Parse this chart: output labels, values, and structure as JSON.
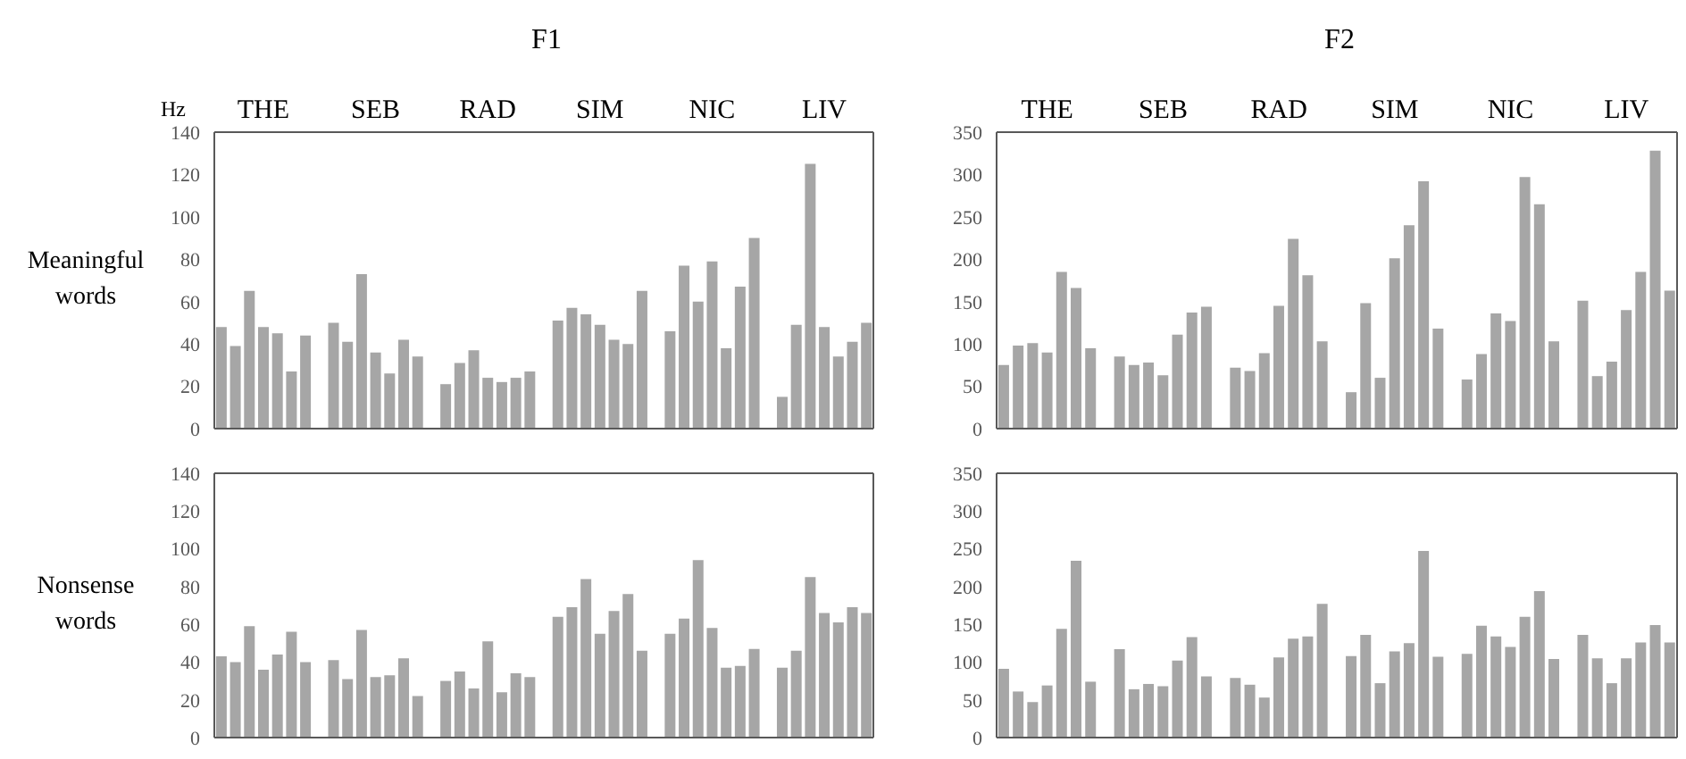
{
  "chart_data": [
    {
      "type": "bar",
      "title": "F1",
      "ylabel": "Meaningful words",
      "annotations": [
        "Hz"
      ],
      "color": "#a6a6a6",
      "categories": [
        null,
        null,
        null,
        "THE",
        null,
        null,
        null,
        null,
        null,
        null,
        null,
        "SEB",
        null,
        null,
        null,
        null,
        null,
        null,
        null,
        "RAD",
        null,
        null,
        null,
        null,
        null,
        null,
        null,
        "SIM",
        null,
        null,
        null,
        null,
        null,
        null,
        null,
        "NIC",
        null,
        null,
        null,
        null,
        null,
        null,
        null,
        "LIV",
        null,
        null,
        null
      ],
      "values": [
        48,
        39,
        65,
        48,
        45,
        27,
        44,
        null,
        50,
        41,
        73,
        36,
        26,
        42,
        34,
        null,
        21,
        31,
        37,
        24,
        22,
        24,
        27,
        null,
        51,
        57,
        54,
        49,
        42,
        40,
        65,
        null,
        46,
        77,
        60,
        79,
        38,
        67,
        90,
        null,
        15,
        49,
        125,
        48,
        34,
        41,
        50
      ],
      "ylim": [
        0,
        140
      ],
      "yticks": [
        0,
        20,
        40,
        60,
        80,
        100,
        120,
        140
      ]
    },
    {
      "type": "bar",
      "title": "F2",
      "color": "#a6a6a6",
      "categories": [
        null,
        null,
        null,
        "THE",
        null,
        null,
        null,
        null,
        null,
        null,
        null,
        "SEB",
        null,
        null,
        null,
        null,
        null,
        null,
        null,
        "RAD",
        null,
        null,
        null,
        null,
        null,
        null,
        null,
        "SIM",
        null,
        null,
        null,
        null,
        null,
        null,
        null,
        "NIC",
        null,
        null,
        null,
        null,
        null,
        null,
        null,
        "LIV",
        null,
        null,
        null
      ],
      "values": [
        75,
        98,
        101,
        90,
        185,
        166,
        95,
        null,
        85,
        75,
        78,
        63,
        111,
        137,
        144,
        null,
        72,
        68,
        89,
        145,
        224,
        181,
        103,
        null,
        43,
        148,
        60,
        201,
        240,
        292,
        118,
        null,
        58,
        88,
        136,
        127,
        297,
        265,
        103,
        null,
        151,
        62,
        79,
        140,
        185,
        328,
        163
      ],
      "ylim": [
        0,
        350
      ],
      "yticks": [
        0,
        50,
        100,
        150,
        200,
        250,
        300,
        350
      ]
    },
    {
      "type": "bar",
      "ylabel": "Nonsense words",
      "color": "#a6a6a6",
      "tick_labels": "y",
      "categories": [
        null,
        null,
        null,
        null,
        null,
        null,
        null,
        null,
        null,
        null,
        null,
        null,
        null,
        null,
        null,
        null,
        null,
        null,
        null,
        null,
        null,
        null,
        null,
        null,
        null,
        null,
        null,
        null,
        null,
        null,
        null,
        null,
        null,
        null,
        null,
        null,
        null,
        null,
        null,
        null,
        null,
        null,
        null,
        null,
        null,
        null,
        null
      ],
      "values": [
        43,
        40,
        59,
        36,
        44,
        56,
        40,
        null,
        41,
        31,
        57,
        32,
        33,
        42,
        22,
        null,
        30,
        35,
        26,
        51,
        24,
        34,
        32,
        null,
        64,
        69,
        84,
        55,
        67,
        76,
        46,
        null,
        55,
        63,
        94,
        58,
        37,
        38,
        47,
        null,
        37,
        46,
        85,
        66,
        61,
        69,
        66
      ],
      "ylim": [
        0,
        140
      ],
      "yticks": [
        0,
        20,
        40,
        60,
        80,
        100,
        120,
        140
      ]
    },
    {
      "type": "bar",
      "color": "#a6a6a6",
      "tick_labels": "y",
      "categories": [
        null,
        null,
        null,
        null,
        null,
        null,
        null,
        null,
        null,
        null,
        null,
        null,
        null,
        null,
        null,
        null,
        null,
        null,
        null,
        null,
        null,
        null,
        null,
        null,
        null,
        null,
        null,
        null,
        null,
        null,
        null,
        null,
        null,
        null,
        null,
        null,
        null,
        null,
        null,
        null,
        null,
        null,
        null,
        null,
        null,
        null,
        null
      ],
      "values": [
        91,
        61,
        47,
        69,
        144,
        234,
        74,
        null,
        117,
        64,
        71,
        68,
        102,
        133,
        81,
        null,
        79,
        70,
        53,
        106,
        131,
        134,
        177,
        null,
        108,
        136,
        72,
        114,
        125,
        247,
        107,
        null,
        111,
        148,
        134,
        120,
        160,
        194,
        104,
        null,
        136,
        105,
        72,
        105,
        126,
        149,
        126
      ],
      "ylim": [
        0,
        350
      ],
      "yticks": [
        0,
        50,
        100,
        150,
        200,
        250,
        300,
        350
      ]
    }
  ]
}
